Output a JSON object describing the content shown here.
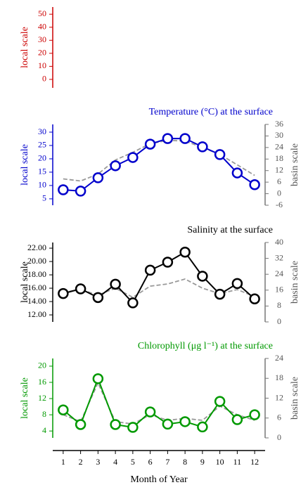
{
  "chart_data": [
    {
      "type": "line",
      "color": "#cc0000",
      "ylabel": "local scale",
      "ylim": [
        -6.5,
        55.5
      ],
      "yticks": [
        0,
        10,
        20,
        30,
        40,
        50
      ],
      "series": []
    },
    {
      "type": "line",
      "title": "Temperature (°C) at the surface",
      "color": "#0000cc",
      "ylabel": "local scale",
      "y2label": "basin scale",
      "x": [
        1,
        2,
        3,
        4,
        5,
        6,
        7,
        8,
        9,
        10,
        11,
        12
      ],
      "ylim": [
        2.6,
        32.9
      ],
      "yticks": [
        5,
        10,
        15,
        20,
        25,
        30
      ],
      "y2lim": [
        -6,
        36
      ],
      "y2ticks": [
        -6,
        0,
        6,
        12,
        18,
        24,
        30,
        36
      ],
      "series": [
        {
          "color": "#999999",
          "axis": "y2",
          "dashed": true,
          "values": [
            7.7,
            6.6,
            10.2,
            17.5,
            21.5,
            26,
            27.7,
            27.4,
            24,
            20.4,
            15,
            9.5
          ]
        },
        {
          "color": "#0000cc",
          "marker": "circle",
          "values": [
            8.4,
            7.9,
            12.9,
            17.4,
            20.5,
            25.5,
            27.6,
            27.6,
            24.5,
            21.6,
            14.7,
            10.3
          ]
        }
      ]
    },
    {
      "type": "line",
      "title": "Salinity at the surface",
      "color": "#000000",
      "ylabel": "local scale",
      "y2label": "basin scale",
      "x": [
        1,
        2,
        3,
        4,
        5,
        6,
        7,
        8,
        9,
        10,
        11,
        12
      ],
      "ylim": [
        10.95,
        22.85
      ],
      "yticks": [
        {
          "value": 12,
          "label": "12.00"
        },
        {
          "value": 14,
          "label": "14.00"
        },
        {
          "value": 16,
          "label": "16.00"
        },
        {
          "value": 18,
          "label": "18.00"
        },
        {
          "value": 20,
          "label": "20.00"
        },
        {
          "value": 22,
          "label": "22.00"
        }
      ],
      "y2lim": [
        0,
        40
      ],
      "y2ticks": [
        0,
        8,
        16,
        24,
        32,
        40
      ],
      "series": [
        {
          "color": "#999999",
          "axis": "y2",
          "dashed": true,
          "values": [
            14.9,
            16.3,
            13.5,
            17,
            12.4,
            18,
            19.1,
            21.6,
            17,
            14.2,
            16.3,
            12.7
          ]
        },
        {
          "color": "#000000",
          "marker": "circle",
          "values": [
            15.2,
            15.9,
            14.6,
            16.6,
            13.8,
            18.7,
            19.9,
            21.4,
            17.8,
            15.1,
            16.7,
            14.4
          ]
        }
      ]
    },
    {
      "type": "line",
      "title": "Chlorophyll (μg l⁻¹) at the surface",
      "color": "#009900",
      "ylabel": "local scale",
      "y2label": "basin scale",
      "x": [
        1,
        2,
        3,
        4,
        5,
        6,
        7,
        8,
        9,
        10,
        11,
        12
      ],
      "ylim": [
        2.3,
        21.9
      ],
      "yticks": [
        4,
        8,
        12,
        16,
        20
      ],
      "y2lim": [
        0,
        24
      ],
      "y2ticks": [
        0,
        6,
        12,
        18,
        24
      ],
      "series": [
        {
          "color": "#999999",
          "axis": "y2",
          "dashed": true,
          "values": [
            7,
            4.9,
            16.6,
            4.9,
            4.2,
            7,
            5.3,
            5.9,
            5.3,
            9.6,
            7,
            5.3
          ]
        },
        {
          "color": "#009900",
          "marker": "circle",
          "values": [
            9.2,
            5.6,
            16.9,
            5.6,
            4.9,
            8.7,
            5.7,
            6.3,
            5,
            11.3,
            6.8,
            8
          ]
        }
      ],
      "xlabel": "Month of Year",
      "xlim": [
        0.4,
        12.6
      ],
      "xticks": [
        1,
        2,
        3,
        4,
        5,
        6,
        7,
        8,
        9,
        10,
        11,
        12
      ]
    }
  ]
}
